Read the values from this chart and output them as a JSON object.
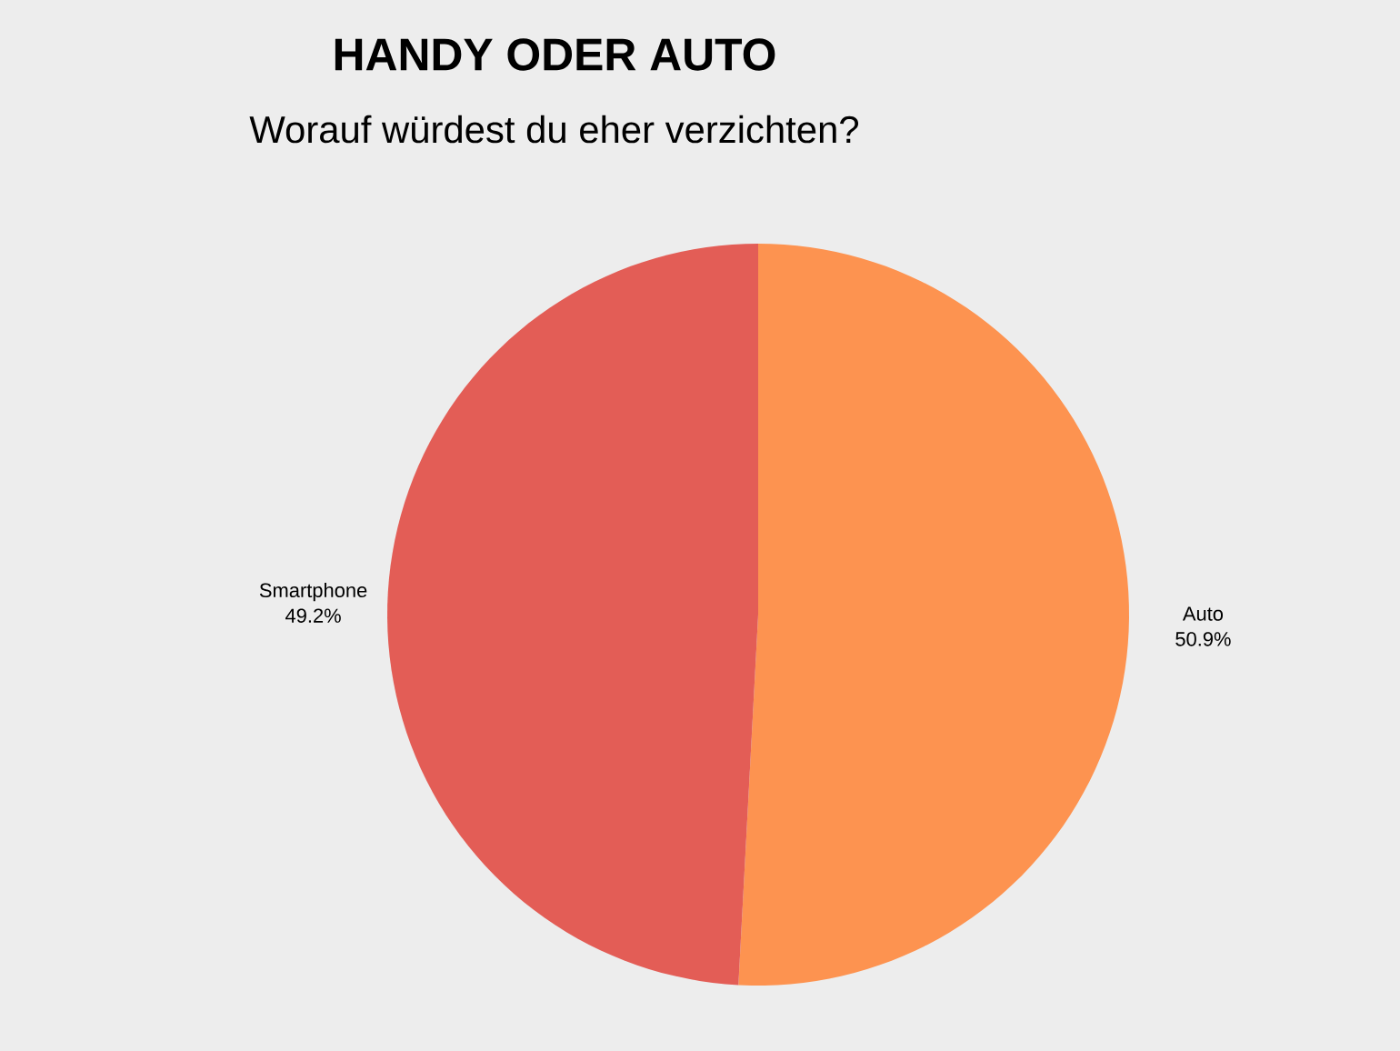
{
  "chart_data": {
    "type": "pie",
    "title": "HANDY ODER AUTO",
    "subtitle": "Worauf würdest du eher verzichten?",
    "categories": [
      "Auto",
      "Smartphone"
    ],
    "values": [
      50.9,
      49.2
    ],
    "value_labels": [
      "50.9%",
      "49.2%"
    ],
    "colors": [
      "#fd9350",
      "#e35d56"
    ]
  }
}
